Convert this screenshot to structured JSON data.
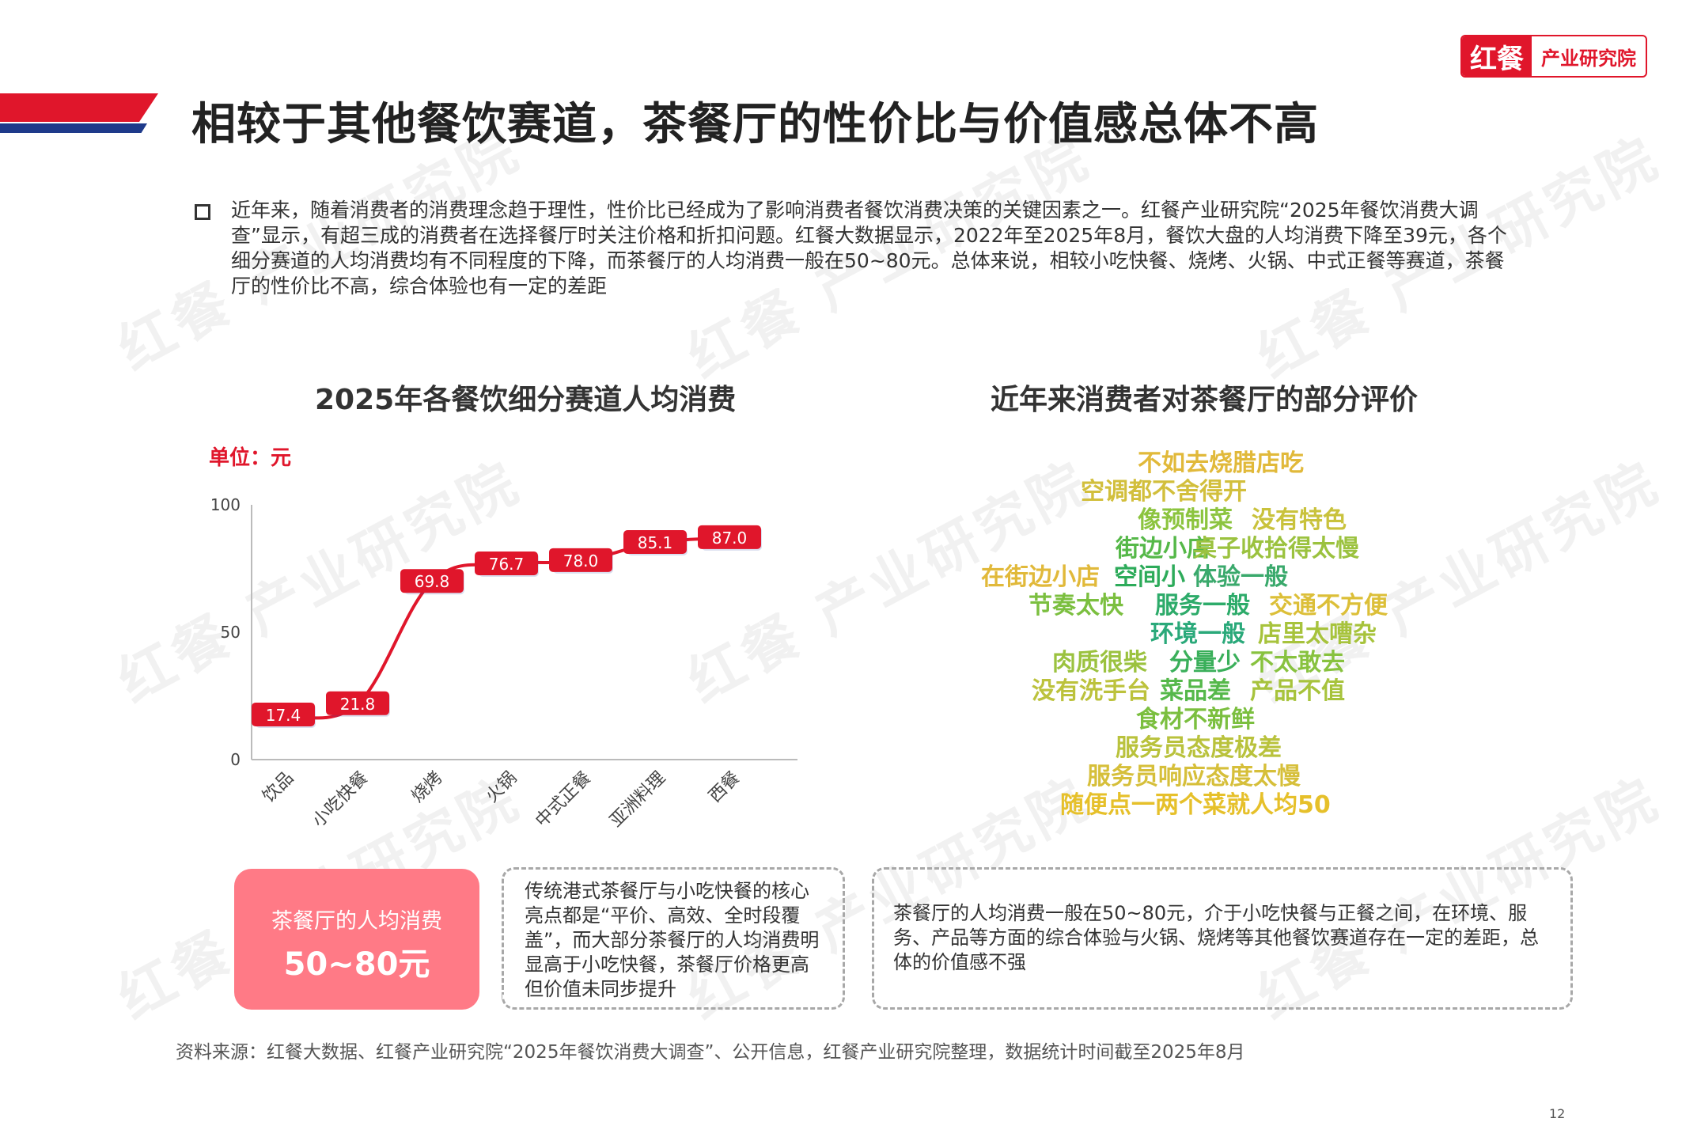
{
  "header": {
    "title": "相较于其他餐饮赛道，茶餐厅的性价比与价值感总体不高",
    "logo_mark": "红餐",
    "logo_text": "产业研究院"
  },
  "watermark": "红餐 产业研究院",
  "intro_text": "近年来，随着消费者的消费理念趋于理性，性价比已经成为了影响消费者餐饮消费决策的关键因素之一。红餐产业研究院“2025年餐饮消费大调查”显示，有超三成的消费者在选择餐厅时关注价格和折扣问题。红餐大数据显示，2022年至2025年8月，餐饮大盘的人均消费下降至39元，各个细分赛道的人均消费均有不同程度的下降，而茶餐厅的人均消费一般在50~80元。总体来说，相较小吃快餐、烧烤、火锅、中式正餐等赛道，茶餐厅的性价比不高，综合体验也有一定的差距",
  "left_chart": {
    "title": "2025年各餐饮细分赛道人均消费",
    "unit": "单位：元"
  },
  "chart_data": {
    "type": "line",
    "title": "2025年各餐饮细分赛道人均消费",
    "unit": "单位：元",
    "categories": [
      "饮品",
      "小吃快餐",
      "烧烤",
      "火锅",
      "中式正餐",
      "亚洲料理",
      "西餐"
    ],
    "values": [
      17.4,
      21.8,
      69.8,
      76.7,
      78.0,
      85.1,
      87.0
    ],
    "labels": [
      "17.4",
      "21.8",
      "69.8",
      "76.7",
      "78.0",
      "85.1",
      "87.0"
    ],
    "ylim": [
      0,
      100
    ],
    "yticks": [
      "0",
      "50",
      "100"
    ],
    "grid": false,
    "line_color": "#e0162b"
  },
  "right_panel": {
    "title": "近年来消费者对茶餐厅的部分评价",
    "words": [
      {
        "text": "不如去烧腊店吃",
        "color": "#e1b93a"
      },
      {
        "text": "空调都不舍得开",
        "color": "#d2bf3c"
      },
      {
        "text": "像预制菜",
        "color": "#8cc43f"
      },
      {
        "text": "没有特色",
        "color": "#c9c23c"
      },
      {
        "text": "街边小店",
        "color": "#55b848"
      },
      {
        "text": "桌子收拾得太慢",
        "color": "#9bc23f"
      },
      {
        "text": "在街边小店",
        "color": "#e1b93a"
      },
      {
        "text": "空间小",
        "color": "#2dab5a"
      },
      {
        "text": "体验一般",
        "color": "#3aa96c"
      },
      {
        "text": "节奏太快",
        "color": "#7bbf3f"
      },
      {
        "text": "服务一般",
        "color": "#2dab6a"
      },
      {
        "text": "交通不方便",
        "color": "#dcbf38"
      },
      {
        "text": "环境一般",
        "color": "#2aa97a"
      },
      {
        "text": "店里太嘈杂",
        "color": "#a7c33c"
      },
      {
        "text": "肉质很柴",
        "color": "#9bc23f"
      },
      {
        "text": "分量少",
        "color": "#3aaf5a"
      },
      {
        "text": "不太敢去",
        "color": "#88c23f"
      },
      {
        "text": "没有洗手台",
        "color": "#bcc23c"
      },
      {
        "text": "菜品差",
        "color": "#55b84a"
      },
      {
        "text": "产品不值",
        "color": "#a7c33c"
      },
      {
        "text": "食材不新鲜",
        "color": "#7bbf3f"
      },
      {
        "text": "服务员态度极差",
        "color": "#b9c23c"
      },
      {
        "text": "服务员响应态度太慢",
        "color": "#d6bf3a"
      },
      {
        "text": "随便点一两个菜就人均50",
        "color": "#e6c02a"
      }
    ]
  },
  "summary": {
    "pink_label": "茶餐厅的人均消费",
    "pink_value": "50~80元",
    "middle_text": "传统港式茶餐厅与小吃快餐的核心亮点都是“平价、高效、全时段覆盖”，而大部分茶餐厅的人均消费明显高于小吃快餐，茶餐厅价格更高但价值未同步提升",
    "right_text": "茶餐厅的人均消费一般在50~80元，介于小吃快餐与正餐之间，在环境、服务、产品等方面的综合体验与火锅、烧烤等其他餐饮赛道存在一定的差距，总体的价值感不强"
  },
  "footer": {
    "source": "资料来源：红餐大数据、红餐产业研究院“2025年餐饮消费大调查”、公开信息，红餐产业研究院整理，数据统计时间截至2025年8月",
    "page": "12"
  },
  "colors": {
    "brand_red": "#e0162b",
    "brand_blue": "#1e3a8a",
    "pink": "#ff7a86"
  }
}
